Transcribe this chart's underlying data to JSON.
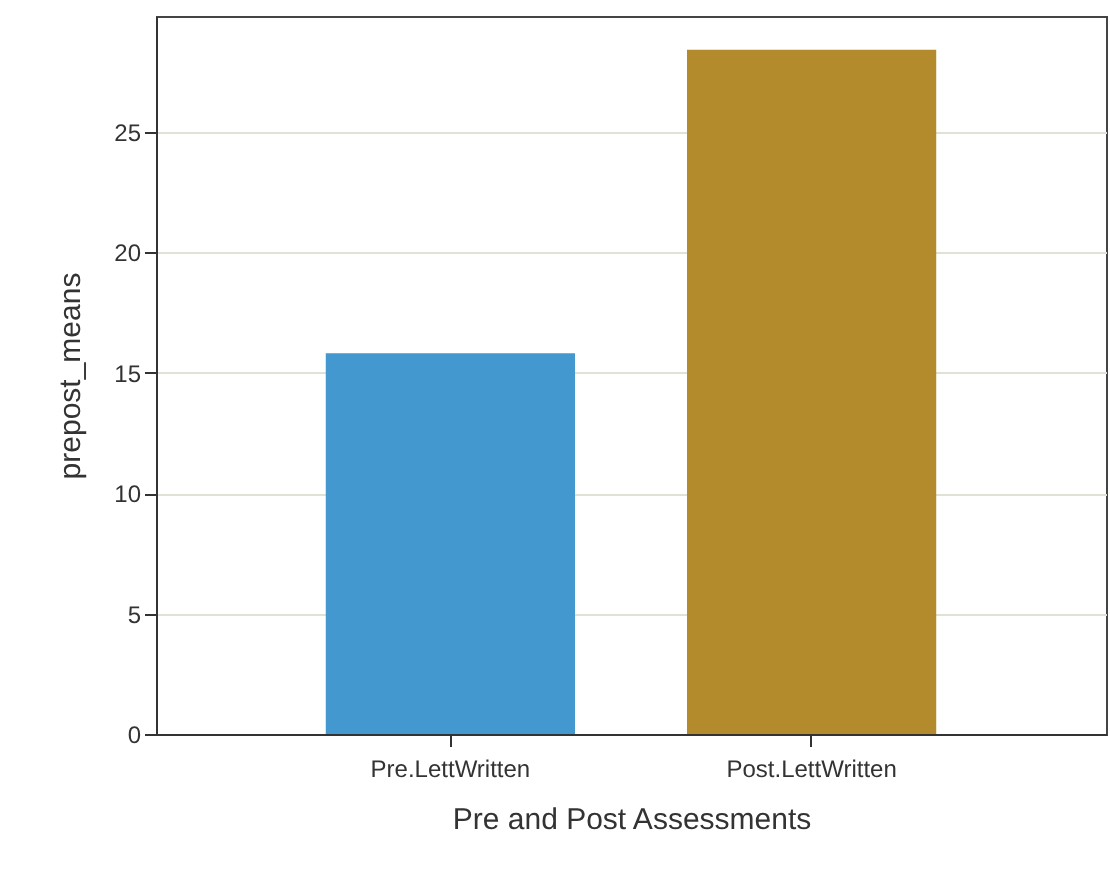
{
  "chart_data": {
    "type": "bar",
    "xlabel": "Pre and Post Assessments",
    "ylabel": "prepost_means",
    "categories": [
      "Pre.LettWritten",
      "Post.LettWritten"
    ],
    "values": [
      15.8,
      28.4
    ],
    "colors": [
      "#4398d0",
      "#b38b2d"
    ],
    "ylim": [
      0,
      29.8
    ],
    "yticks": [
      0,
      5,
      10,
      15,
      20,
      25
    ],
    "grid": "y"
  }
}
